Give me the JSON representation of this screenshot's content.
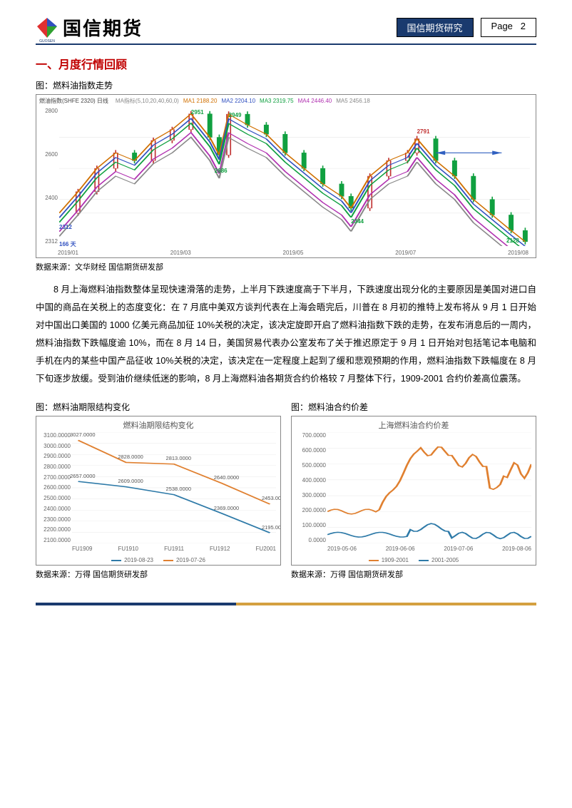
{
  "header": {
    "brand": "国信期货",
    "badge": "国信期货研究",
    "page_label": "Page",
    "page_num": "2",
    "brand_logo_colors": {
      "left": "#e03030",
      "top": "#3050c0",
      "right": "#30a030"
    },
    "brand_sub": "GUOSEN",
    "border_color": "#1a3a6e"
  },
  "section1": {
    "title": "一、月度行情回顾",
    "fig_label": "图：燃料油指数走势",
    "source": "数据来源：文华财经 国信期货研发部"
  },
  "chart1": {
    "type": "candlestick",
    "header_left": "燃油指数(SHFE 2320) 日线",
    "ma_items": [
      {
        "label": "MA指标(5,10,20,40,60,0)",
        "color": "#888888"
      },
      {
        "label": "MA1 2188.20",
        "color": "#d07000"
      },
      {
        "label": "MA2 2204.10",
        "color": "#3050c0"
      },
      {
        "label": "MA3 2319.75",
        "color": "#10a040"
      },
      {
        "label": "MA4 2446.40",
        "color": "#b030b0"
      },
      {
        "label": "MA5 2456.18",
        "color": "#888888"
      }
    ],
    "y_ticks": [
      "2800",
      "2600",
      "2400",
      "2312"
    ],
    "x_ticks": [
      "2019/01",
      "2019/03",
      "2019/05",
      "2019/07",
      "2019/08"
    ],
    "markers": [
      {
        "text": "2951",
        "x": 28,
        "y": 2,
        "color": "#10a040"
      },
      {
        "text": "2949",
        "x": 36,
        "y": 4,
        "color": "#10a040"
      },
      {
        "text": "2686",
        "x": 33,
        "y": 44,
        "color": "#10a040"
      },
      {
        "text": "2312",
        "x": 0,
        "y": 84,
        "color": "#3050c0"
      },
      {
        "text": "166 天",
        "x": 0,
        "y": 96,
        "color": "#3050c0"
      },
      {
        "text": "2344",
        "x": 62,
        "y": 80,
        "color": "#10a040"
      },
      {
        "text": "2791",
        "x": 76,
        "y": 16,
        "color": "#c03030"
      },
      {
        "text": "2128",
        "x": 95,
        "y": 94,
        "color": "#10a040"
      }
    ],
    "up_color": "#c03030",
    "down_color": "#10a040",
    "arrow_color": "#3060c0",
    "background": "#ffffff",
    "grid_color": "#e8e8e8",
    "ylim": [
      2100,
      3000
    ]
  },
  "body": {
    "p1": "8 月上海燃料油指数整体呈现快速滑落的走势，上半月下跌速度高于下半月，下跌速度出现分化的主要原因是美国对进口自中国的商品在关税上的态度变化：在 7 月底中美双方谈判代表在上海会晤完后，川普在 8 月初的推特上发布将从 9 月 1 日开始对中国出口美国的 1000 亿美元商品加征 10%关税的决定，该决定旋即开启了燃料油指数下跌的走势，在发布消息后的一周内，燃料油指数下跌幅度逾 10%，而在 8 月 14 日，美国贸易代表办公室发布了关于推迟原定于 9 月 1 日开始对包括笔记本电脑和手机在内的某些中国产品征收 10%关税的决定，该决定在一定程度上起到了缓和悲观预期的作用，燃料油指数下跌幅度在 8 月下旬逐步放缓。受到油价继续低迷的影响，8 月上海燃料油各期货合约价格较 7 月整体下行，1909-2001 合约价差高位震荡。"
  },
  "chart2": {
    "type": "line",
    "fig_label": "图：燃料油期限结构变化",
    "title": "燃料油期限结构变化",
    "categories": [
      "FU1909",
      "FU1910",
      "FU1911",
      "FU1912",
      "FU2001"
    ],
    "series": [
      {
        "name": "2019-08-23",
        "color": "#2e7aa8",
        "values": [
          2657.0,
          2609.0,
          2538.0,
          2369.0,
          2195.0
        ]
      },
      {
        "name": "2019-07-26",
        "color": "#e08030",
        "values": [
          3027.0,
          2828.0,
          2813.0,
          2640.0,
          2453.0
        ]
      }
    ],
    "ylim": [
      2100,
      3100
    ],
    "y_ticks": [
      "3100.0000",
      "3000.0000",
      "2900.0000",
      "2800.0000",
      "2700.0000",
      "2600.0000",
      "2500.0000",
      "2400.0000",
      "2300.0000",
      "2200.0000",
      "2100.0000"
    ],
    "grid_color": "#e8e8e8",
    "label_fontsize": 8,
    "source": "数据来源：万得 国信期货研发部"
  },
  "chart3": {
    "type": "line",
    "fig_label": "图：燃料油合约价差",
    "title": "上海燃料油合约价差",
    "x_ticks": [
      "2019-05-06",
      "2019-06-06",
      "2019-07-06",
      "2019-08-06"
    ],
    "series": [
      {
        "name": "1909-2001",
        "color": "#e08030"
      },
      {
        "name": "2001-2005",
        "color": "#2e7aa8"
      }
    ],
    "ylim": [
      0,
      700
    ],
    "y_ticks": [
      "700.0000",
      "600.0000",
      "500.0000",
      "400.0000",
      "300.0000",
      "200.0000",
      "100.0000",
      "0.0000"
    ],
    "grid_color": "#e8e8e8",
    "source": "数据来源：万得 国信期货研发部"
  },
  "footer": {
    "color_left": "#1a3a6e",
    "color_right": "#d4a040"
  }
}
